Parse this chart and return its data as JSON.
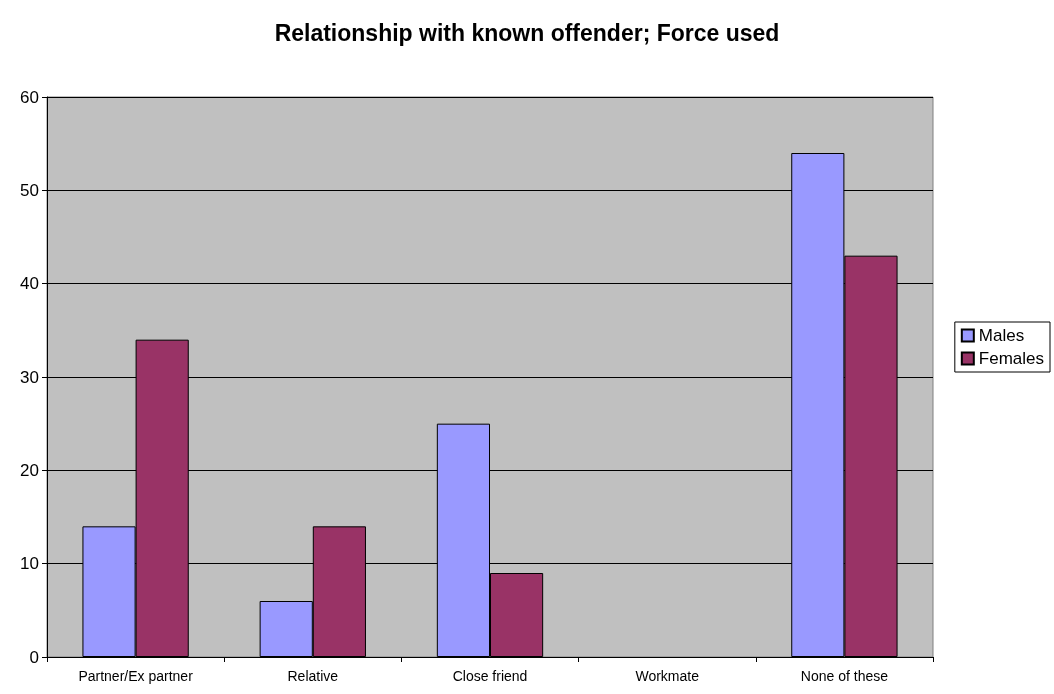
{
  "chart_data": {
    "type": "bar",
    "title": "Relationship with known offender; Force used",
    "categories": [
      "Partner/Ex partner",
      "Relative",
      "Close friend",
      "Workmate",
      "None of these"
    ],
    "series": [
      {
        "name": "Males",
        "color": "#9999ff",
        "values": [
          14,
          6,
          25,
          0,
          54
        ]
      },
      {
        "name": "Females",
        "color": "#993366",
        "values": [
          34,
          14,
          9,
          0,
          43
        ]
      }
    ],
    "ylim": [
      0,
      60
    ],
    "yticks": [
      0,
      10,
      20,
      30,
      40,
      50,
      60
    ],
    "grid": "y",
    "legend": "right"
  }
}
